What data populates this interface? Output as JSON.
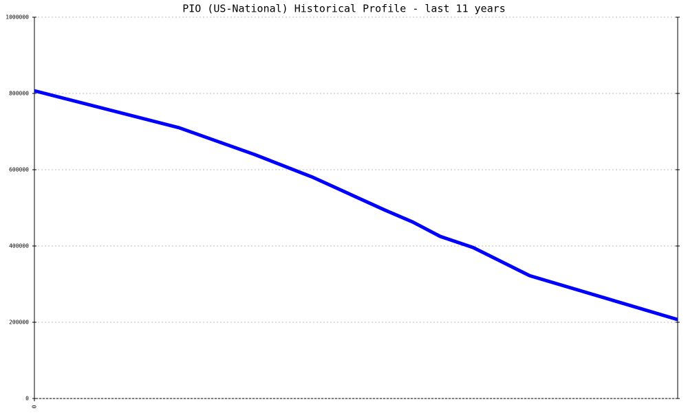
{
  "chart_data": {
    "type": "line",
    "title": "PIO (US-National) Historical Profile - last 11 years",
    "x": [
      0,
      22.5,
      34.2,
      43.3,
      54.5,
      58.8,
      63.1,
      68.2,
      77,
      100
    ],
    "xlim": [
      0,
      100
    ],
    "xticks": [
      0
    ],
    "series": [
      {
        "name": "PIO",
        "color": "#0000ff",
        "values": [
          807000,
          710000,
          640000,
          580000,
          494000,
          463000,
          425000,
          396000,
          322000,
          207000
        ]
      }
    ],
    "ylim": [
      0,
      1000000
    ],
    "yticks": [
      0,
      200000,
      400000,
      600000,
      800000,
      1000000
    ],
    "grid": true
  }
}
